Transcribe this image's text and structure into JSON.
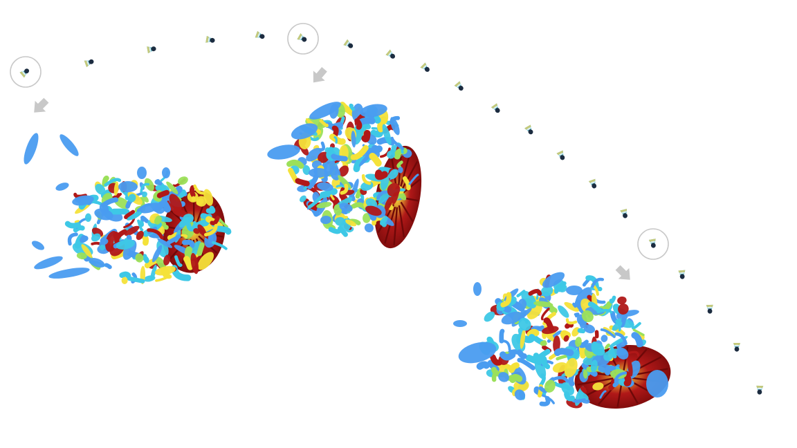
{
  "figure": {
    "trajectory_positions": 21,
    "highlighted_positions": [
      1,
      6,
      18
    ],
    "colors": {
      "background": "#ffffff",
      "trajectory_circle": "#c8c8c8",
      "arrow": "#c8c8c8",
      "vortex_blue": "#4a9cf0",
      "vortex_cyan": "#3ec8e6",
      "vortex_green": "#9be05a",
      "vortex_yellow": "#f4e23a",
      "vortex_red": "#b01818",
      "vortex_darkred": "#6e0808",
      "shuttle_dark": "#1c2c40",
      "shuttle_teal": "#3aa7b8",
      "shuttle_yellow": "#e8d26a"
    },
    "icons": [
      "shuttlecock-icon",
      "arrow-down-right-icon",
      "arrow-down-left-icon"
    ]
  }
}
